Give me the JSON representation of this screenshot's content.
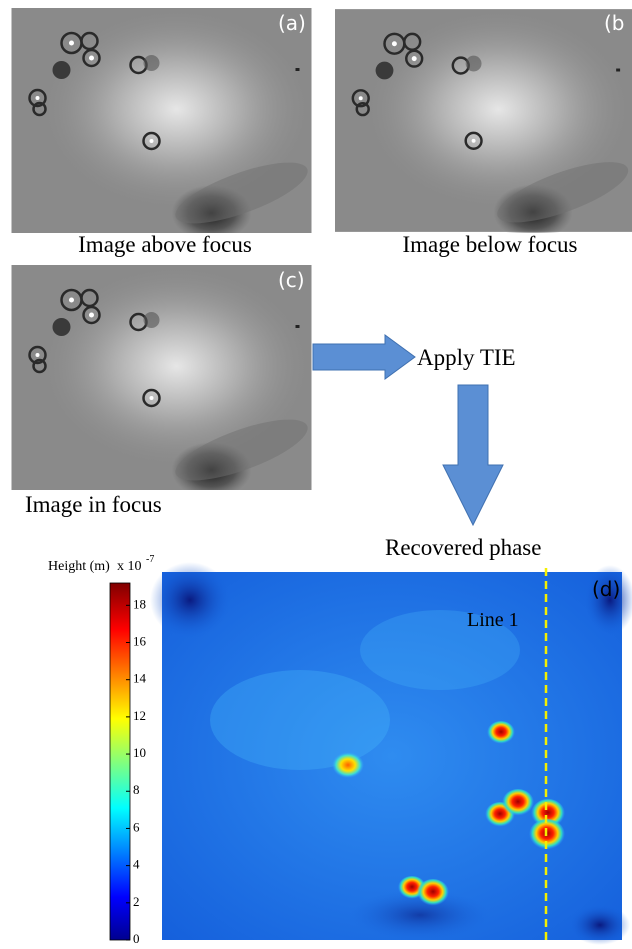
{
  "panels": [
    {
      "label": "(a)",
      "caption": "Image above focus"
    },
    {
      "label": "(b",
      "caption": "Image below focus"
    },
    {
      "label": "(c)",
      "caption": "Image in focus"
    }
  ],
  "steps": {
    "apply": "Apply TIE",
    "result": "Recovered phase"
  },
  "phase_map": {
    "label": "(d)",
    "line_label": "Line 1",
    "colorbar": {
      "title": "Height (m)",
      "scale": "x 10",
      "exponent": "-7",
      "range": [
        0,
        19.2
      ],
      "ticks": [
        0,
        2,
        4,
        6,
        8,
        10,
        12,
        14,
        16,
        18
      ]
    }
  }
}
